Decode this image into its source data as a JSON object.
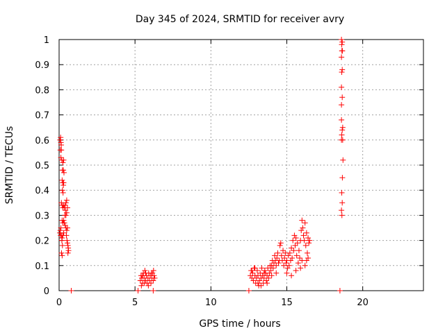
{
  "chart_data": {
    "type": "scatter",
    "title": "Day 345 of 2024, SRMTID for receiver avry",
    "xlabel": "GPS time / hours",
    "ylabel": "SRMTID / TECUs",
    "xlim": [
      0,
      24
    ],
    "ylim": [
      0,
      1
    ],
    "xticks": [
      0,
      5,
      10,
      15,
      20
    ],
    "xtick_labels": [
      "0",
      "5",
      "10",
      "15",
      "20"
    ],
    "yticks": [
      0,
      0.1,
      0.2,
      0.3,
      0.4,
      0.5,
      0.6,
      0.7,
      0.8,
      0.9,
      1
    ],
    "ytick_labels": [
      "0",
      "0.1",
      "0.2",
      "0.3",
      "0.4",
      "0.5",
      "0.6",
      "0.7",
      "0.8",
      "0.9",
      "1"
    ],
    "grid": true,
    "marker": "plus",
    "color": "#ff0000",
    "series": [
      {
        "name": "SRMTID",
        "points": [
          [
            0.05,
            0.23
          ],
          [
            0.08,
            0.24
          ],
          [
            0.1,
            0.22
          ],
          [
            0.06,
            0.6
          ],
          [
            0.1,
            0.61
          ],
          [
            0.12,
            0.59
          ],
          [
            0.14,
            0.58
          ],
          [
            0.08,
            0.56
          ],
          [
            0.15,
            0.56
          ],
          [
            0.12,
            0.53
          ],
          [
            0.18,
            0.52
          ],
          [
            0.25,
            0.51
          ],
          [
            0.3,
            0.52
          ],
          [
            0.22,
            0.48
          ],
          [
            0.28,
            0.48
          ],
          [
            0.32,
            0.47
          ],
          [
            0.2,
            0.44
          ],
          [
            0.24,
            0.43
          ],
          [
            0.28,
            0.42
          ],
          [
            0.3,
            0.43
          ],
          [
            0.22,
            0.4
          ],
          [
            0.26,
            0.39
          ],
          [
            0.15,
            0.35
          ],
          [
            0.2,
            0.34
          ],
          [
            0.25,
            0.33
          ],
          [
            0.3,
            0.34
          ],
          [
            0.35,
            0.33
          ],
          [
            0.4,
            0.34
          ],
          [
            0.45,
            0.35
          ],
          [
            0.5,
            0.36
          ],
          [
            0.42,
            0.32
          ],
          [
            0.38,
            0.3
          ],
          [
            0.45,
            0.3
          ],
          [
            0.5,
            0.31
          ],
          [
            0.55,
            0.33
          ],
          [
            0.2,
            0.28
          ],
          [
            0.25,
            0.27
          ],
          [
            0.3,
            0.28
          ],
          [
            0.35,
            0.27
          ],
          [
            0.4,
            0.26
          ],
          [
            0.45,
            0.25
          ],
          [
            0.5,
            0.24
          ],
          [
            0.55,
            0.25
          ],
          [
            0.15,
            0.22
          ],
          [
            0.2,
            0.21
          ],
          [
            0.25,
            0.22
          ],
          [
            0.3,
            0.23
          ],
          [
            0.12,
            0.25
          ],
          [
            0.18,
            0.2
          ],
          [
            0.22,
            0.18
          ],
          [
            0.16,
            0.15
          ],
          [
            0.2,
            0.14
          ],
          [
            0.48,
            0.22
          ],
          [
            0.52,
            0.2
          ],
          [
            0.55,
            0.19
          ],
          [
            0.58,
            0.18
          ],
          [
            0.6,
            0.17
          ],
          [
            0.62,
            0.16
          ],
          [
            0.58,
            0.15
          ],
          [
            0.8,
            0
          ],
          [
            5.2,
            0
          ],
          [
            5.35,
            0.04
          ],
          [
            5.4,
            0.06
          ],
          [
            5.45,
            0.05
          ],
          [
            5.5,
            0.03
          ],
          [
            5.55,
            0.07
          ],
          [
            5.6,
            0.05
          ],
          [
            5.65,
            0.08
          ],
          [
            5.7,
            0.04
          ],
          [
            5.75,
            0.06
          ],
          [
            5.8,
            0.03
          ],
          [
            5.85,
            0.05
          ],
          [
            5.9,
            0.07
          ],
          [
            5.95,
            0.04
          ],
          [
            6.0,
            0.06
          ],
          [
            6.05,
            0.03
          ],
          [
            6.1,
            0.05
          ],
          [
            6.15,
            0.07
          ],
          [
            6.2,
            0.04
          ],
          [
            6.25,
            0.06
          ],
          [
            6.3,
            0.05
          ],
          [
            5.42,
            0.02
          ],
          [
            5.62,
            0.03
          ],
          [
            5.88,
            0.02
          ],
          [
            6.08,
            0.07
          ],
          [
            6.22,
            0.08
          ],
          [
            5.5,
            0.06
          ],
          [
            5.7,
            0.07
          ],
          [
            6.2,
            0
          ],
          [
            12.5,
            0
          ],
          [
            12.6,
            0.06
          ],
          [
            12.65,
            0.08
          ],
          [
            12.7,
            0.05
          ],
          [
            12.75,
            0.07
          ],
          [
            12.8,
            0.04
          ],
          [
            12.85,
            0.09
          ],
          [
            12.9,
            0.06
          ],
          [
            12.95,
            0.03
          ],
          [
            13.0,
            0.05
          ],
          [
            13.05,
            0.08
          ],
          [
            13.1,
            0.06
          ],
          [
            13.15,
            0.02
          ],
          [
            13.2,
            0.04
          ],
          [
            13.25,
            0.07
          ],
          [
            13.3,
            0.05
          ],
          [
            13.35,
            0.09
          ],
          [
            13.4,
            0.06
          ],
          [
            13.45,
            0.03
          ],
          [
            13.5,
            0.05
          ],
          [
            13.55,
            0.08
          ],
          [
            13.6,
            0.07
          ],
          [
            13.65,
            0.04
          ],
          [
            13.7,
            0.06
          ],
          [
            13.75,
            0.09
          ],
          [
            13.8,
            0.05
          ],
          [
            13.85,
            0.07
          ],
          [
            13.9,
            0.1
          ],
          [
            13.95,
            0.08
          ],
          [
            14.0,
            0.06
          ],
          [
            12.7,
            0.08
          ],
          [
            12.9,
            0.09
          ],
          [
            13.1,
            0.03
          ],
          [
            13.3,
            0.02
          ],
          [
            13.5,
            0.07
          ],
          [
            13.7,
            0.03
          ],
          [
            14.0,
            0.1
          ],
          [
            14.05,
            0.12
          ],
          [
            14.1,
            0.09
          ],
          [
            14.15,
            0.11
          ],
          [
            14.2,
            0.14
          ],
          [
            14.25,
            0.12
          ],
          [
            14.3,
            0.1
          ],
          [
            14.35,
            0.13
          ],
          [
            14.4,
            0.15
          ],
          [
            14.45,
            0.11
          ],
          [
            14.5,
            0.12
          ],
          [
            14.55,
            0.18
          ],
          [
            14.6,
            0.19
          ],
          [
            14.65,
            0.14
          ],
          [
            14.7,
            0.12
          ],
          [
            14.75,
            0.16
          ],
          [
            14.8,
            0.1
          ],
          [
            14.85,
            0.13
          ],
          [
            14.9,
            0.15
          ],
          [
            14.95,
            0.11
          ],
          [
            15.0,
            0.12
          ],
          [
            15.05,
            0.09
          ],
          [
            15.1,
            0.14
          ],
          [
            15.15,
            0.1
          ],
          [
            15.2,
            0.15
          ],
          [
            15.25,
            0.12
          ],
          [
            15.3,
            0.17
          ],
          [
            15.35,
            0.13
          ],
          [
            15.4,
            0.2
          ],
          [
            15.45,
            0.16
          ],
          [
            15.5,
            0.22
          ],
          [
            15.55,
            0.18
          ],
          [
            15.6,
            0.21
          ],
          [
            15.65,
            0.14
          ],
          [
            15.7,
            0.19
          ],
          [
            15.75,
            0.11
          ],
          [
            15.8,
            0.16
          ],
          [
            15.85,
            0.13
          ],
          [
            15.9,
            0.2
          ],
          [
            15.95,
            0.24
          ],
          [
            16.0,
            0.28
          ],
          [
            16.05,
            0.25
          ],
          [
            16.1,
            0.22
          ],
          [
            16.15,
            0.2
          ],
          [
            16.2,
            0.27
          ],
          [
            16.25,
            0.18
          ],
          [
            16.3,
            0.23
          ],
          [
            16.35,
            0.15
          ],
          [
            16.4,
            0.21
          ],
          [
            16.45,
            0.19
          ],
          [
            16.5,
            0.2
          ],
          [
            16.2,
            0.1
          ],
          [
            16.3,
            0.12
          ],
          [
            15.3,
            0.06
          ],
          [
            15.0,
            0.07
          ],
          [
            15.6,
            0.08
          ],
          [
            15.9,
            0.09
          ],
          [
            16.0,
            0.12
          ],
          [
            16.4,
            0.13
          ],
          [
            14.3,
            0.07
          ],
          [
            18.5,
            0
          ],
          [
            18.6,
            0.6
          ],
          [
            18.62,
            0.62
          ],
          [
            18.65,
            0.64
          ],
          [
            18.68,
            0.65
          ],
          [
            18.6,
            0.68
          ],
          [
            18.7,
            0.52
          ],
          [
            18.66,
            0.45
          ],
          [
            18.62,
            0.39
          ],
          [
            18.65,
            0.35
          ],
          [
            18.6,
            0.32
          ],
          [
            18.63,
            0.3
          ],
          [
            18.6,
            0.74
          ],
          [
            18.65,
            0.77
          ],
          [
            18.6,
            0.81
          ],
          [
            18.62,
            0.87
          ],
          [
            18.65,
            0.88
          ],
          [
            18.6,
            0.93
          ],
          [
            18.63,
            0.955
          ],
          [
            18.66,
            0.955
          ],
          [
            18.62,
            0.98
          ],
          [
            18.65,
            0.99
          ],
          [
            18.6,
            1.0
          ],
          [
            18.68,
            0.6
          ]
        ]
      }
    ]
  }
}
